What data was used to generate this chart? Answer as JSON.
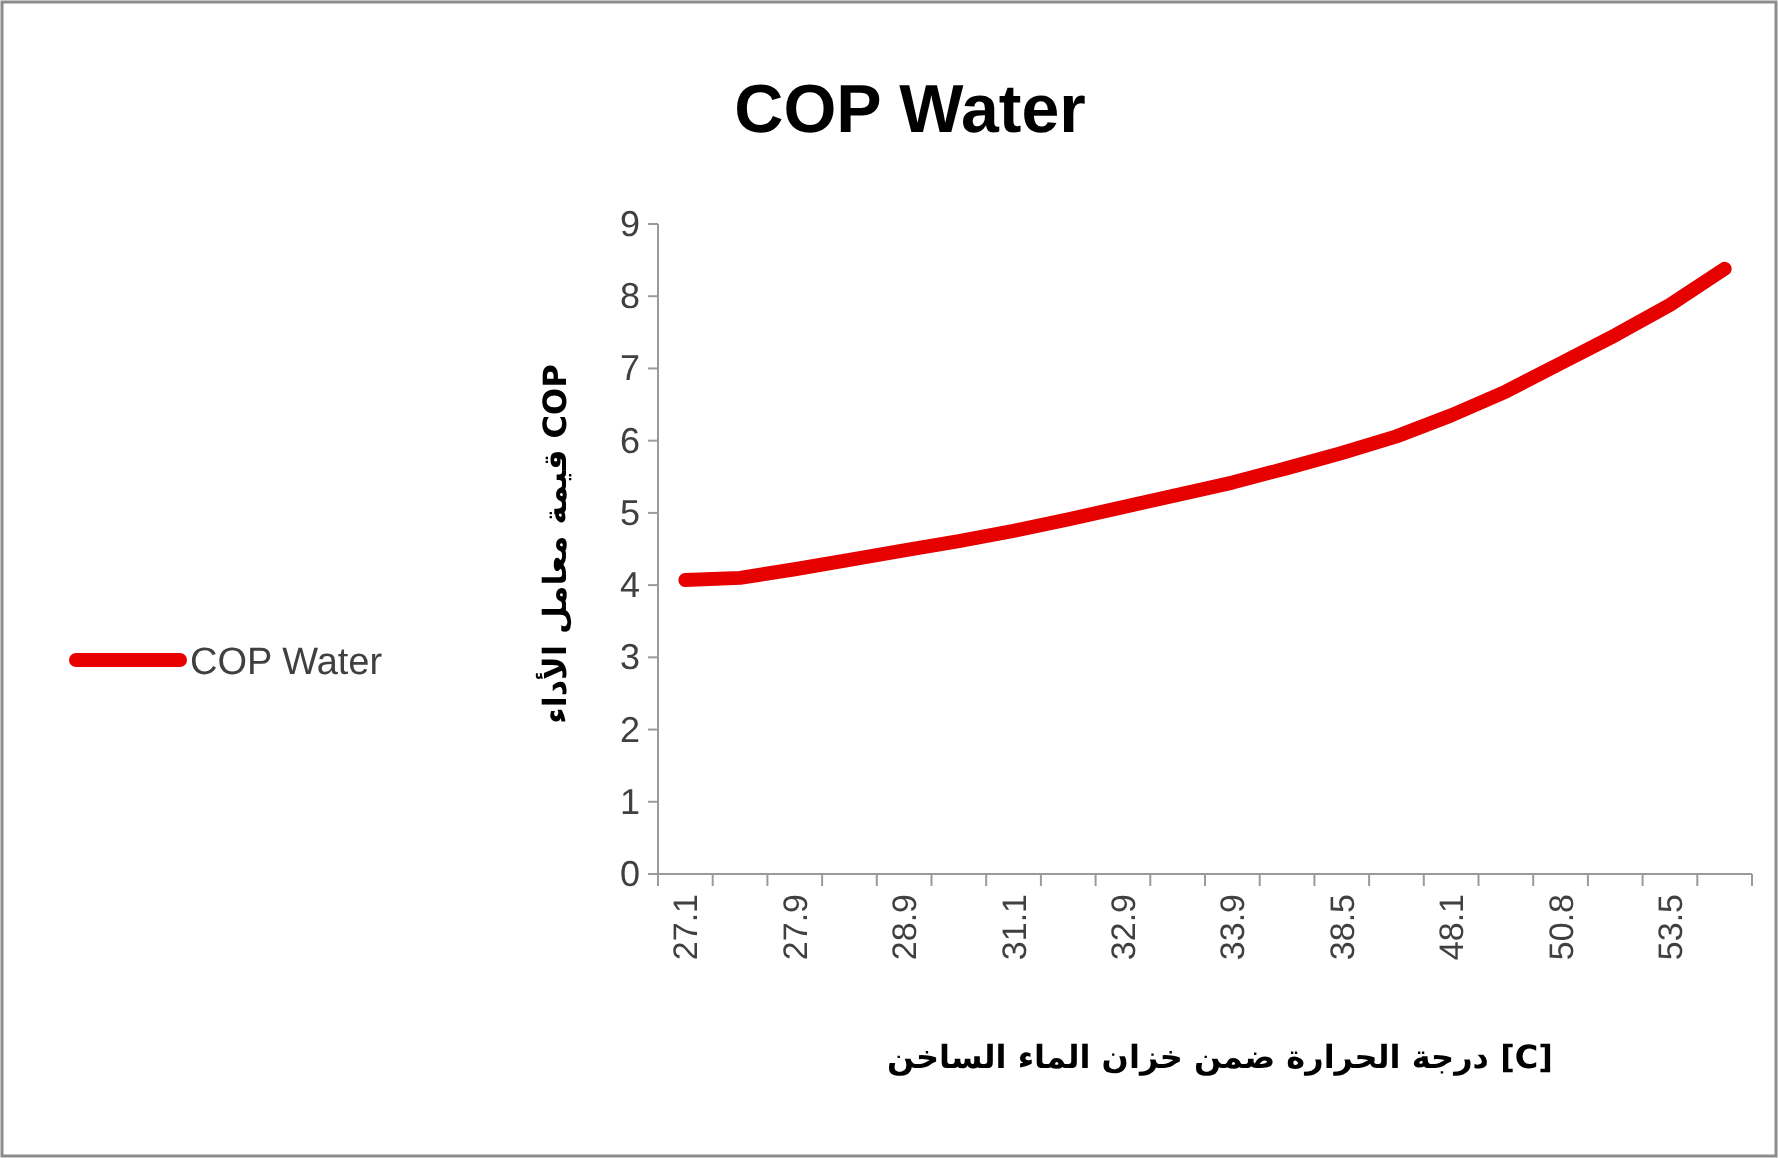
{
  "chart_data": {
    "type": "line",
    "title": "COP Water",
    "xlabel": "درجة الحرارة ضمن خزان الماء الساخن [C]",
    "ylabel": "قيمة معامل الأداء COP",
    "categories": [
      "27.1",
      null,
      "27.9",
      null,
      "28.9",
      null,
      "31.1",
      null,
      "32.9",
      null,
      "33.9",
      null,
      "38.5",
      null,
      "48.1",
      null,
      "50.8",
      null,
      "53.5",
      null
    ],
    "series": [
      {
        "name": "COP Water",
        "color": "#e60000",
        "values": [
          4.07,
          4.1,
          4.22,
          4.35,
          4.48,
          4.61,
          4.75,
          4.91,
          5.08,
          5.25,
          5.42,
          5.62,
          5.83,
          6.06,
          6.35,
          6.68,
          7.07,
          7.46,
          7.88,
          8.38
        ]
      }
    ],
    "ylim": [
      0,
      9
    ],
    "yticks": [
      0,
      1,
      2,
      3,
      4,
      5,
      6,
      7,
      8,
      9
    ],
    "legend": "left",
    "line_style": "solid"
  }
}
